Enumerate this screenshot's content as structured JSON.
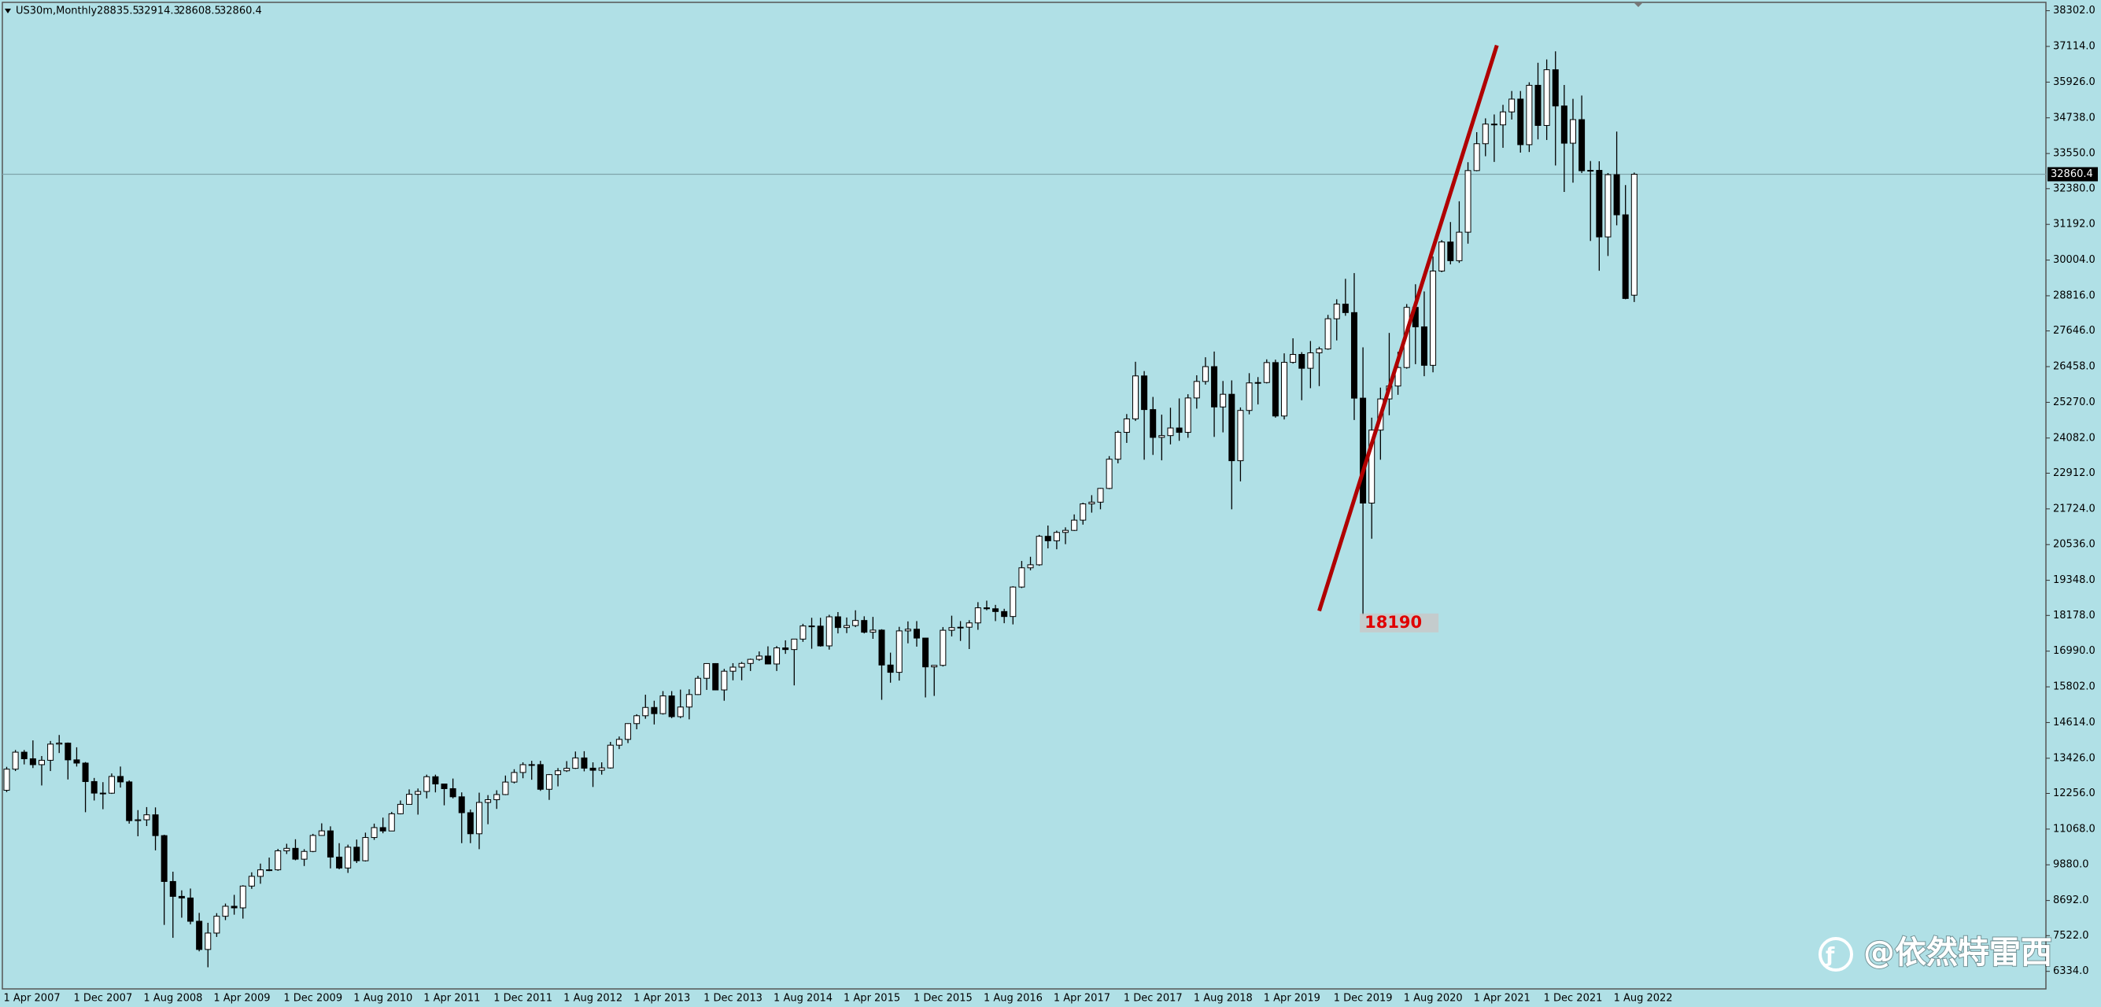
{
  "chart_data": {
    "type": "candlestick",
    "symbol": "US30m,Monthly",
    "background": "#b0e0e6",
    "up_color": "#ffffff",
    "down_color": "#000000",
    "wick_color": "#000000",
    "categories": [
      "1 Apr 2007",
      null,
      null,
      null,
      null,
      null,
      null,
      null,
      "1 Dec 2007",
      null,
      null,
      null,
      null,
      null,
      null,
      null,
      "1 Aug 2008",
      null,
      null,
      null,
      null,
      null,
      null,
      null,
      "1 Apr 2009",
      null,
      null,
      null,
      null,
      null,
      null,
      null,
      "1 Dec 2009",
      null,
      null,
      null,
      null,
      null,
      null,
      null,
      "1 Aug 2010",
      null,
      null,
      null,
      null,
      null,
      null,
      null,
      "1 Apr 2011",
      null,
      null,
      null,
      null,
      null,
      null,
      null,
      "1 Dec 2011",
      null,
      null,
      null,
      null,
      null,
      null,
      null,
      "1 Aug 2012",
      null,
      null,
      null,
      null,
      null,
      null,
      null,
      "1 Apr 2013",
      null,
      null,
      null,
      null,
      null,
      null,
      null,
      "1 Dec 2013",
      null,
      null,
      null,
      null,
      null,
      null,
      null,
      "1 Aug 2014",
      null,
      null,
      null,
      null,
      null,
      null,
      null,
      "1 Apr 2015",
      null,
      null,
      null,
      null,
      null,
      null,
      null,
      "1 Dec 2015",
      null,
      null,
      null,
      null,
      null,
      null,
      null,
      "1 Aug 2016",
      null,
      null,
      null,
      null,
      null,
      null,
      null,
      "1 Apr 2017",
      null,
      null,
      null,
      null,
      null,
      null,
      null,
      "1 Dec 2017",
      null,
      null,
      null,
      null,
      null,
      null,
      null,
      "1 Aug 2018",
      null,
      null,
      null,
      null,
      null,
      null,
      null,
      "1 Apr 2019",
      null,
      null,
      null,
      null,
      null,
      null,
      null,
      "1 Dec 2019",
      null,
      null,
      null,
      null,
      null,
      null,
      null,
      "1 Aug 2020",
      null,
      null,
      null,
      null,
      null,
      null,
      null,
      "1 Apr 2021",
      null,
      null,
      null,
      null,
      null,
      null,
      null,
      "1 Dec 2021",
      null,
      null,
      null,
      null,
      null,
      null,
      null,
      "1 Aug 2022",
      null,
      null
    ],
    "open": [
      12360,
      13063,
      13628,
      13409,
      13212,
      13358,
      13896,
      13930,
      13372,
      13265,
      12650,
      12266,
      12263,
      12820,
      12638,
      11350,
      11378,
      11544,
      10851,
      9325,
      8829,
      8776,
      8001,
      7063,
      7609,
      8168,
      8500,
      8447,
      9172,
      9496,
      9712,
      9713,
      10345,
      10428,
      10067,
      10325,
      10857,
      11009,
      10137,
      9774,
      10466,
      10015,
      10788,
      11118,
      11006,
      11578,
      11892,
      12226,
      12320,
      12811,
      12570,
      12414,
      12143,
      11614,
      10913,
      11955,
      12046,
      12218,
      12633,
      12952,
      13212,
      13214,
      12393,
      12880,
      13009,
      13091,
      13437,
      13096,
      13026,
      13104,
      13861,
      14054,
      14579,
      14840,
      15116,
      14910,
      15500,
      14810,
      15130,
      15546,
      16086,
      16577,
      15699,
      16322,
      16458,
      16581,
      16717,
      16827,
      16563,
      17098,
      17043,
      17391,
      17828,
      17823,
      17165,
      18133,
      17776,
      17841,
      18011,
      17620,
      17690,
      16528,
      16285,
      17664,
      17720,
      17425,
      16466,
      16517,
      17685,
      17774,
      17787,
      17930,
      18432,
      18401,
      18308,
      18142,
      19124,
      19763,
      19864,
      20812,
      20663,
      20941,
      21009,
      21350,
      21891,
      21948,
      22405,
      23377,
      24272,
      24719,
      26149,
      25029,
      24103,
      24163,
      24416,
      24271,
      25415,
      25965,
      26458,
      25116,
      25538,
      23327,
      25000,
      25916,
      25929,
      26593,
      24815,
      26600,
      26864,
      26403,
      26917,
      27046,
      28051,
      28538,
      28256,
      25409,
      21917,
      24346,
      25383,
      25813,
      26428,
      28430,
      27782,
      26502,
      29638,
      30606,
      29983,
      30932,
      32982,
      33875,
      34529,
      34503,
      34935,
      35361,
      33844,
      35820,
      34484,
      36338,
      35132,
      33893,
      34678,
      32977,
      32990,
      30775,
      32845,
      31510,
      28835.5
    ],
    "high": [
      13140,
      13700,
      13700,
      14020,
      13500,
      14000,
      14200,
      13950,
      13790,
      13300,
      12770,
      12630,
      12920,
      13150,
      12690,
      11700,
      11800,
      11790,
      10880,
      9650,
      9030,
      9090,
      8280,
      7950,
      8270,
      8590,
      8880,
      9200,
      9630,
      9920,
      10120,
      10410,
      10580,
      10730,
      10400,
      10910,
      11260,
      11160,
      10600,
      10550,
      10720,
      10950,
      11250,
      11450,
      11640,
      12020,
      12390,
      12420,
      12880,
      12880,
      12580,
      12750,
      12290,
      11720,
      12280,
      12200,
      12360,
      12850,
      13060,
      13290,
      13340,
      13340,
      12900,
      13100,
      13330,
      13650,
      13660,
      13290,
      13290,
      13970,
      14150,
      14590,
      14890,
      15540,
      15340,
      15660,
      15660,
      15710,
      15720,
      16170,
      16590,
      16590,
      16400,
      16590,
      16630,
      16740,
      16980,
      17150,
      17160,
      17350,
      17400,
      17900,
      18100,
      18100,
      18200,
      18290,
      18110,
      18350,
      18150,
      18130,
      17720,
      16940,
      17800,
      17980,
      17990,
      17430,
      16520,
      17790,
      18170,
      17990,
      18020,
      18620,
      18670,
      18530,
      18400,
      19150,
      19990,
      20130,
      20860,
      21170,
      21000,
      21110,
      21540,
      21930,
      22180,
      22420,
      23480,
      24330,
      24880,
      26620,
      26310,
      25450,
      24860,
      25090,
      25400,
      25540,
      26170,
      26770,
      26960,
      25980,
      26000,
      25100,
      26240,
      26110,
      26700,
      26690,
      26900,
      27400,
      26940,
      27310,
      27120,
      28180,
      28700,
      29380,
      29570,
      27100,
      24760,
      25760,
      27580,
      26950,
      28540,
      29200,
      28960,
      30120,
      30670,
      31270,
      31960,
      33260,
      34260,
      34720,
      34850,
      35170,
      35630,
      35630,
      35920,
      36570,
      36680,
      36950,
      35830,
      35370,
      35480,
      33300,
      33290,
      32900,
      34280,
      32500,
      32914.3
    ],
    "low": [
      12300,
      13000,
      13220,
      13100,
      12520,
      13000,
      13600,
      12720,
      13150,
      11630,
      12020,
      11730,
      12240,
      12450,
      11250,
      10830,
      11170,
      10360,
      7880,
      7450,
      8120,
      7900,
      7000,
      6470,
      7480,
      8040,
      8220,
      8090,
      9080,
      9250,
      9670,
      9680,
      10240,
      10030,
      9840,
      10300,
      10850,
      9760,
      9730,
      9610,
      9940,
      9990,
      10710,
      10930,
      11000,
      11560,
      11890,
      11550,
      12090,
      12290,
      11860,
      12090,
      10600,
      10600,
      10400,
      11230,
      11740,
      12200,
      12590,
      12760,
      12710,
      12340,
      12040,
      12490,
      12970,
      13070,
      12990,
      12470,
      12880,
      13080,
      13730,
      13930,
      14390,
      14740,
      14550,
      14880,
      14760,
      14760,
      14720,
      15530,
      15700,
      15690,
      15340,
      16020,
      16020,
      16330,
      16670,
      16550,
      16330,
      16900,
      15850,
      17300,
      17070,
      17140,
      17040,
      17580,
      17590,
      17790,
      17580,
      17400,
      15370,
      15940,
      16010,
      17250,
      17140,
      15450,
      15500,
      16480,
      17480,
      17330,
      17060,
      17700,
      18350,
      17990,
      17920,
      17880,
      19090,
      19680,
      19830,
      20410,
      20380,
      20550,
      20990,
      21200,
      21600,
      21710,
      22380,
      23240,
      23920,
      24650,
      23360,
      23520,
      23340,
      23870,
      23990,
      24090,
      25060,
      25860,
      24120,
      24270,
      21710,
      22640,
      24870,
      25200,
      25900,
      24760,
      24700,
      26560,
      25340,
      25740,
      25810,
      27020,
      27330,
      28150,
      24680,
      18190,
      20730,
      23360,
      24840,
      25520,
      26390,
      26540,
      26140,
      26270,
      29600,
      29860,
      29910,
      30550,
      32960,
      33460,
      33270,
      33740,
      34680,
      33580,
      33600,
      34020,
      34000,
      33150,
      32270,
      32580,
      32900,
      30640,
      29650,
      30140,
      31160,
      28700,
      28608.5
    ],
    "close": [
      13063,
      13628,
      13409,
      13212,
      13358,
      13896,
      13930,
      13372,
      13265,
      12650,
      12266,
      12263,
      12820,
      12638,
      11350,
      11378,
      11544,
      10851,
      9325,
      8829,
      8776,
      8001,
      7063,
      7609,
      8168,
      8500,
      8447,
      9172,
      9496,
      9712,
      9713,
      10345,
      10428,
      10067,
      10325,
      10857,
      11009,
      10137,
      9774,
      10466,
      10015,
      10788,
      11118,
      11006,
      11578,
      11892,
      12226,
      12320,
      12811,
      12570,
      12414,
      12143,
      11614,
      10913,
      11955,
      12046,
      12218,
      12633,
      12952,
      13212,
      13214,
      12393,
      12880,
      13009,
      13091,
      13437,
      13096,
      13026,
      13104,
      13861,
      14054,
      14579,
      14840,
      15116,
      14910,
      15500,
      14810,
      15130,
      15546,
      16086,
      16577,
      15699,
      16322,
      16458,
      16581,
      16717,
      16827,
      16563,
      17098,
      17043,
      17391,
      17828,
      17823,
      17165,
      18133,
      17776,
      17841,
      18011,
      17620,
      17690,
      16528,
      16285,
      17664,
      17720,
      17425,
      16466,
      16517,
      17685,
      17774,
      17787,
      17930,
      18432,
      18401,
      18308,
      18142,
      19124,
      19763,
      19864,
      20812,
      20663,
      20941,
      21009,
      21350,
      21891,
      21948,
      22405,
      23377,
      24272,
      24719,
      26149,
      25029,
      24103,
      24163,
      24416,
      24271,
      25415,
      25965,
      26458,
      25116,
      25538,
      23327,
      25000,
      25916,
      25929,
      26593,
      24815,
      26600,
      26864,
      26403,
      26917,
      27046,
      28051,
      28538,
      28256,
      25409,
      21917,
      24346,
      25383,
      25813,
      26428,
      28430,
      27782,
      26502,
      29638,
      30606,
      29983,
      30932,
      32982,
      33875,
      34529,
      34503,
      34935,
      35361,
      33844,
      35820,
      34484,
      36338,
      35132,
      33893,
      34678,
      32977,
      32990,
      30775,
      32845,
      31510,
      28726,
      32860.4
    ],
    "ylim": [
      5750,
      38580
    ],
    "yticks": [
      {
        "value": 6334,
        "label": "6334.0"
      },
      {
        "value": 7522,
        "label": "7522.0"
      },
      {
        "value": 8692,
        "label": "8692.0"
      },
      {
        "value": 9880,
        "label": "9880.0"
      },
      {
        "value": 11068,
        "label": "11068.0"
      },
      {
        "value": 12256,
        "label": "12256.0"
      },
      {
        "value": 13426,
        "label": "13426.0"
      },
      {
        "value": 14614,
        "label": "14614.0"
      },
      {
        "value": 15802,
        "label": "15802.0"
      },
      {
        "value": 16990,
        "label": "16990.0"
      },
      {
        "value": 18178,
        "label": "18178.0"
      },
      {
        "value": 19348,
        "label": "19348.0"
      },
      {
        "value": 20536,
        "label": "20536.0"
      },
      {
        "value": 21724,
        "label": "21724.0"
      },
      {
        "value": 22912,
        "label": "22912.0"
      },
      {
        "value": 24082,
        "label": "24082.0"
      },
      {
        "value": 25270,
        "label": "25270.0"
      },
      {
        "value": 26458,
        "label": "26458.0"
      },
      {
        "value": 27646,
        "label": "27646.0"
      },
      {
        "value": 28816,
        "label": "28816.0"
      },
      {
        "value": 30004,
        "label": "30004.0"
      },
      {
        "value": 31192,
        "label": "31192.0"
      },
      {
        "value": 32380,
        "label": "32380.0"
      },
      {
        "value": 33550,
        "label": "33550.0"
      },
      {
        "value": 34738,
        "label": "34738.0"
      },
      {
        "value": 35926,
        "label": "35926.0"
      },
      {
        "value": 37114,
        "label": "37114.0"
      },
      {
        "value": 38302,
        "label": "38302.0"
      }
    ],
    "grid": false,
    "price_line_color": "#7fa5aa",
    "trendline": {
      "color": "#b00000",
      "x": [
        150,
        170.3
      ],
      "y": [
        18330,
        37150
      ]
    },
    "low_annotation": {
      "index": 155,
      "color": "#e00000",
      "box_color": "#c8c8c8"
    },
    "watermark": "@依然特雷西"
  }
}
